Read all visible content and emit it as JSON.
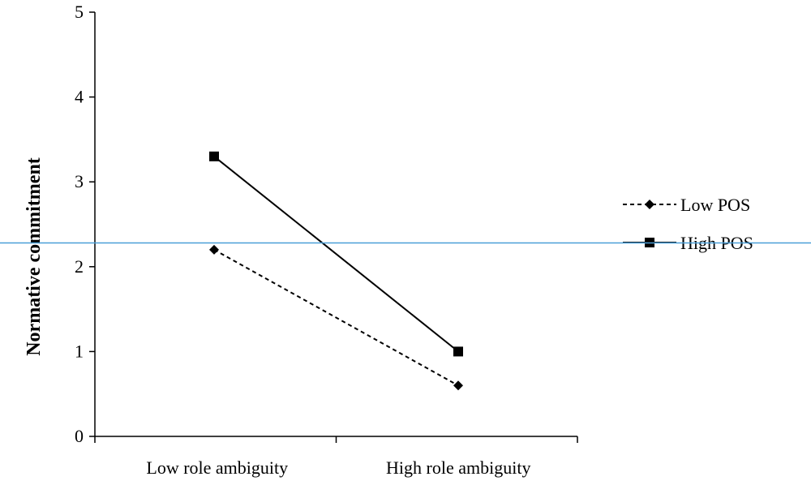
{
  "chart_data": {
    "type": "line",
    "title": "",
    "xlabel": "",
    "ylabel": "Normative commitment",
    "categories": [
      "Low role ambiguity",
      "High role ambiguity"
    ],
    "ylim": [
      0,
      5
    ],
    "yticks": [
      "0",
      "1",
      "2",
      "3",
      "4",
      "5"
    ],
    "grid": false,
    "legend_position": "right",
    "series": [
      {
        "name": "Low POS",
        "values": [
          2.2,
          0.6
        ],
        "line": "dashed",
        "marker": "diamond",
        "color": "#000000"
      },
      {
        "name": "High POS",
        "values": [
          3.3,
          1.0
        ],
        "line": "solid",
        "marker": "square",
        "color": "#000000"
      }
    ],
    "reference_line": {
      "y": 2.28,
      "color": "#4a9fd8"
    }
  }
}
